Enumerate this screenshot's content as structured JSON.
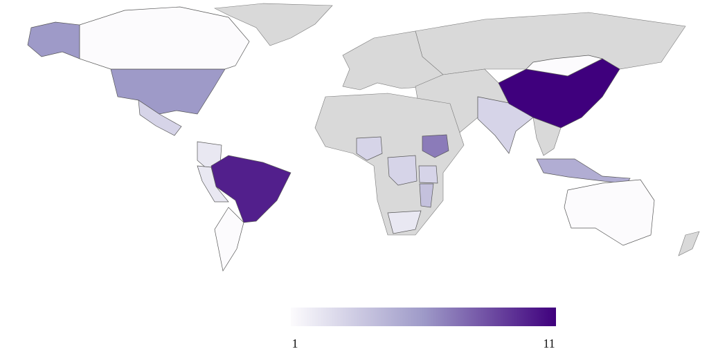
{
  "chart_data": {
    "type": "choropleth",
    "values": [
      6,
      1,
      3,
      2,
      10,
      2,
      1,
      3,
      7,
      3,
      3,
      4,
      2,
      3,
      11,
      5,
      1,
      1
    ],
    "colors": [
      "#fcfbfd",
      "#9e9ac8",
      "#3f007d"
    ],
    "missing_color": "#d9d9d9",
    "colorbar": {
      "lim": [
        1,
        11
      ],
      "ticks": [
        1,
        11
      ]
    }
  }
}
